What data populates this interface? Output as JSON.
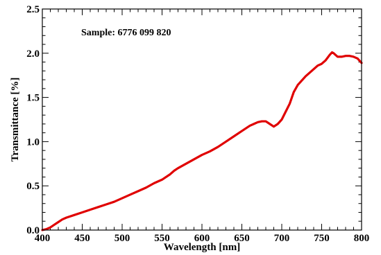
{
  "chart_data": {
    "type": "line",
    "title": "",
    "annotation": "Sample: 6776 099 820",
    "xlabel": "Wavelength [nm]",
    "ylabel": "Transmittance [%]",
    "xlim": [
      400,
      800
    ],
    "ylim": [
      0.0,
      2.5
    ],
    "xticks": [
      400,
      450,
      500,
      550,
      600,
      650,
      700,
      750,
      800
    ],
    "xtick_labels": [
      "400",
      "450",
      "500",
      "550",
      "600",
      "650",
      "700",
      "750",
      "800"
    ],
    "yticks": [
      0.0,
      0.5,
      1.0,
      1.5,
      2.0,
      2.5
    ],
    "ytick_labels": [
      "0.0",
      "0.5",
      "1.0",
      "1.5",
      "2.0",
      "2.5"
    ],
    "grid": false,
    "legend": "none",
    "series": [
      {
        "color": "#e00000",
        "x": [
          400,
          405,
          410,
          415,
          420,
          425,
          430,
          440,
          450,
          460,
          470,
          480,
          490,
          500,
          510,
          520,
          530,
          540,
          550,
          560,
          565,
          570,
          580,
          590,
          600,
          610,
          620,
          630,
          640,
          650,
          660,
          665,
          670,
          675,
          680,
          685,
          690,
          695,
          700,
          705,
          710,
          715,
          720,
          730,
          740,
          745,
          750,
          755,
          760,
          763,
          765,
          770,
          775,
          780,
          785,
          790,
          795,
          800
        ],
        "y": [
          0.0,
          0.01,
          0.03,
          0.06,
          0.09,
          0.12,
          0.14,
          0.17,
          0.2,
          0.23,
          0.26,
          0.29,
          0.32,
          0.36,
          0.4,
          0.44,
          0.48,
          0.53,
          0.57,
          0.63,
          0.67,
          0.7,
          0.75,
          0.8,
          0.85,
          0.89,
          0.94,
          1.0,
          1.06,
          1.12,
          1.18,
          1.2,
          1.22,
          1.23,
          1.23,
          1.2,
          1.17,
          1.2,
          1.25,
          1.34,
          1.43,
          1.56,
          1.64,
          1.74,
          1.82,
          1.86,
          1.88,
          1.92,
          1.98,
          2.01,
          2.0,
          1.96,
          1.96,
          1.97,
          1.97,
          1.96,
          1.94,
          1.89
        ]
      }
    ]
  }
}
